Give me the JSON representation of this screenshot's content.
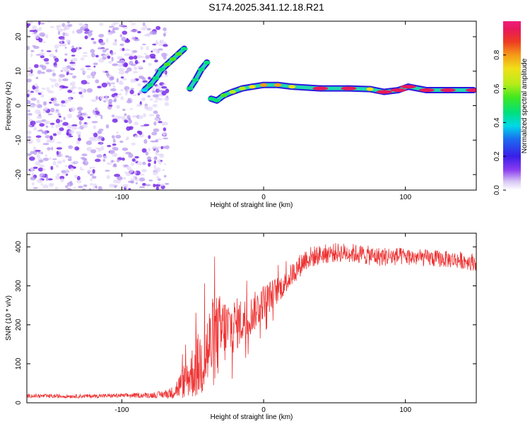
{
  "title": "S174.2025.341.12.18.R21",
  "chart_data": [
    {
      "type": "heatmap",
      "xlabel": "Height of straight line (km)",
      "ylabel": "Frequency (Hz)",
      "xlim": [
        -167,
        150
      ],
      "ylim": [
        -24.5,
        24.5
      ],
      "x_ticks": [
        -100,
        0,
        100
      ],
      "y_ticks": [
        -20,
        -10,
        0,
        10,
        20
      ],
      "colorbar": {
        "label": "Normalized spectral amplitude",
        "range": [
          0,
          1
        ],
        "ticks": [
          0.0,
          0.2,
          0.4,
          0.6,
          0.8
        ]
      },
      "carrier_track": [
        {
          "x": -84,
          "y": 4.5,
          "amp": 0.35
        },
        {
          "x": -80,
          "y": 6.0,
          "amp": 0.4
        },
        {
          "x": -76,
          "y": 8.0,
          "amp": 0.45
        },
        {
          "x": -72,
          "y": 10.5,
          "amp": 0.45
        },
        {
          "x": -68,
          "y": 12.0,
          "amp": 0.5
        },
        {
          "x": -64,
          "y": 13.5,
          "amp": 0.55
        },
        {
          "x": -60,
          "y": 15.0,
          "amp": 0.5
        },
        {
          "x": -56,
          "y": 16.5,
          "amp": 0.45
        },
        {
          "x": -52,
          "y": 5.0,
          "amp": 0.4
        },
        {
          "x": -48,
          "y": 7.5,
          "amp": 0.4
        },
        {
          "x": -44,
          "y": 10.5,
          "amp": 0.4
        },
        {
          "x": -40,
          "y": 12.5,
          "amp": 0.4
        },
        {
          "x": -37,
          "y": 2.0,
          "amp": 0.4
        },
        {
          "x": -33,
          "y": 1.5,
          "amp": 0.45
        },
        {
          "x": -28,
          "y": 3.0,
          "amp": 0.55
        },
        {
          "x": -22,
          "y": 4.0,
          "amp": 0.6
        },
        {
          "x": -15,
          "y": 5.0,
          "amp": 0.6
        },
        {
          "x": -8,
          "y": 5.5,
          "amp": 0.65
        },
        {
          "x": 0,
          "y": 6.0,
          "amp": 0.8
        },
        {
          "x": 10,
          "y": 6.0,
          "amp": 0.8
        },
        {
          "x": 20,
          "y": 5.5,
          "amp": 0.7
        },
        {
          "x": 40,
          "y": 5.0,
          "amp": 0.9
        },
        {
          "x": 60,
          "y": 5.0,
          "amp": 0.95
        },
        {
          "x": 75,
          "y": 4.8,
          "amp": 0.7
        },
        {
          "x": 85,
          "y": 4.0,
          "amp": 0.95
        },
        {
          "x": 95,
          "y": 4.5,
          "amp": 0.9
        },
        {
          "x": 102,
          "y": 5.5,
          "amp": 0.95
        },
        {
          "x": 115,
          "y": 4.5,
          "amp": 0.9
        },
        {
          "x": 130,
          "y": 4.5,
          "amp": 0.9
        },
        {
          "x": 148,
          "y": 4.5,
          "amp": 0.95
        }
      ]
    },
    {
      "type": "line",
      "xlabel": "Height of straight line (km)",
      "ylabel": "SNR (10 * v/v)",
      "xlim": [
        -167,
        150
      ],
      "ylim": [
        0,
        435
      ],
      "x_ticks": [
        -100,
        0,
        100
      ],
      "y_ticks": [
        0,
        100,
        200,
        300,
        400
      ],
      "color": "#ee3333",
      "series": [
        {
          "name": "SNR",
          "x": [
            -167,
            -150,
            -130,
            -110,
            -90,
            -75,
            -65,
            -60,
            -55,
            -50,
            -45,
            -40,
            -35,
            -30,
            -25,
            -20,
            -15,
            -10,
            -5,
            0,
            5,
            10,
            15,
            20,
            25,
            30,
            40,
            50,
            60,
            70,
            80,
            90,
            100,
            110,
            120,
            130,
            140,
            150
          ],
          "values": [
            18,
            17,
            17,
            18,
            19,
            20,
            25,
            40,
            60,
            80,
            100,
            130,
            160,
            180,
            190,
            200,
            210,
            220,
            240,
            260,
            275,
            290,
            305,
            330,
            350,
            370,
            380,
            385,
            385,
            380,
            375,
            375,
            375,
            372,
            370,
            368,
            365,
            360
          ],
          "noise_amplitude": [
            5,
            5,
            5,
            5,
            6,
            8,
            15,
            30,
            50,
            70,
            90,
            110,
            120,
            100,
            80,
            70,
            60,
            50,
            50,
            45,
            40,
            35,
            30,
            30,
            30,
            30,
            25,
            25,
            25,
            25,
            25,
            25,
            22,
            22,
            22,
            22,
            22,
            22
          ]
        }
      ]
    }
  ]
}
